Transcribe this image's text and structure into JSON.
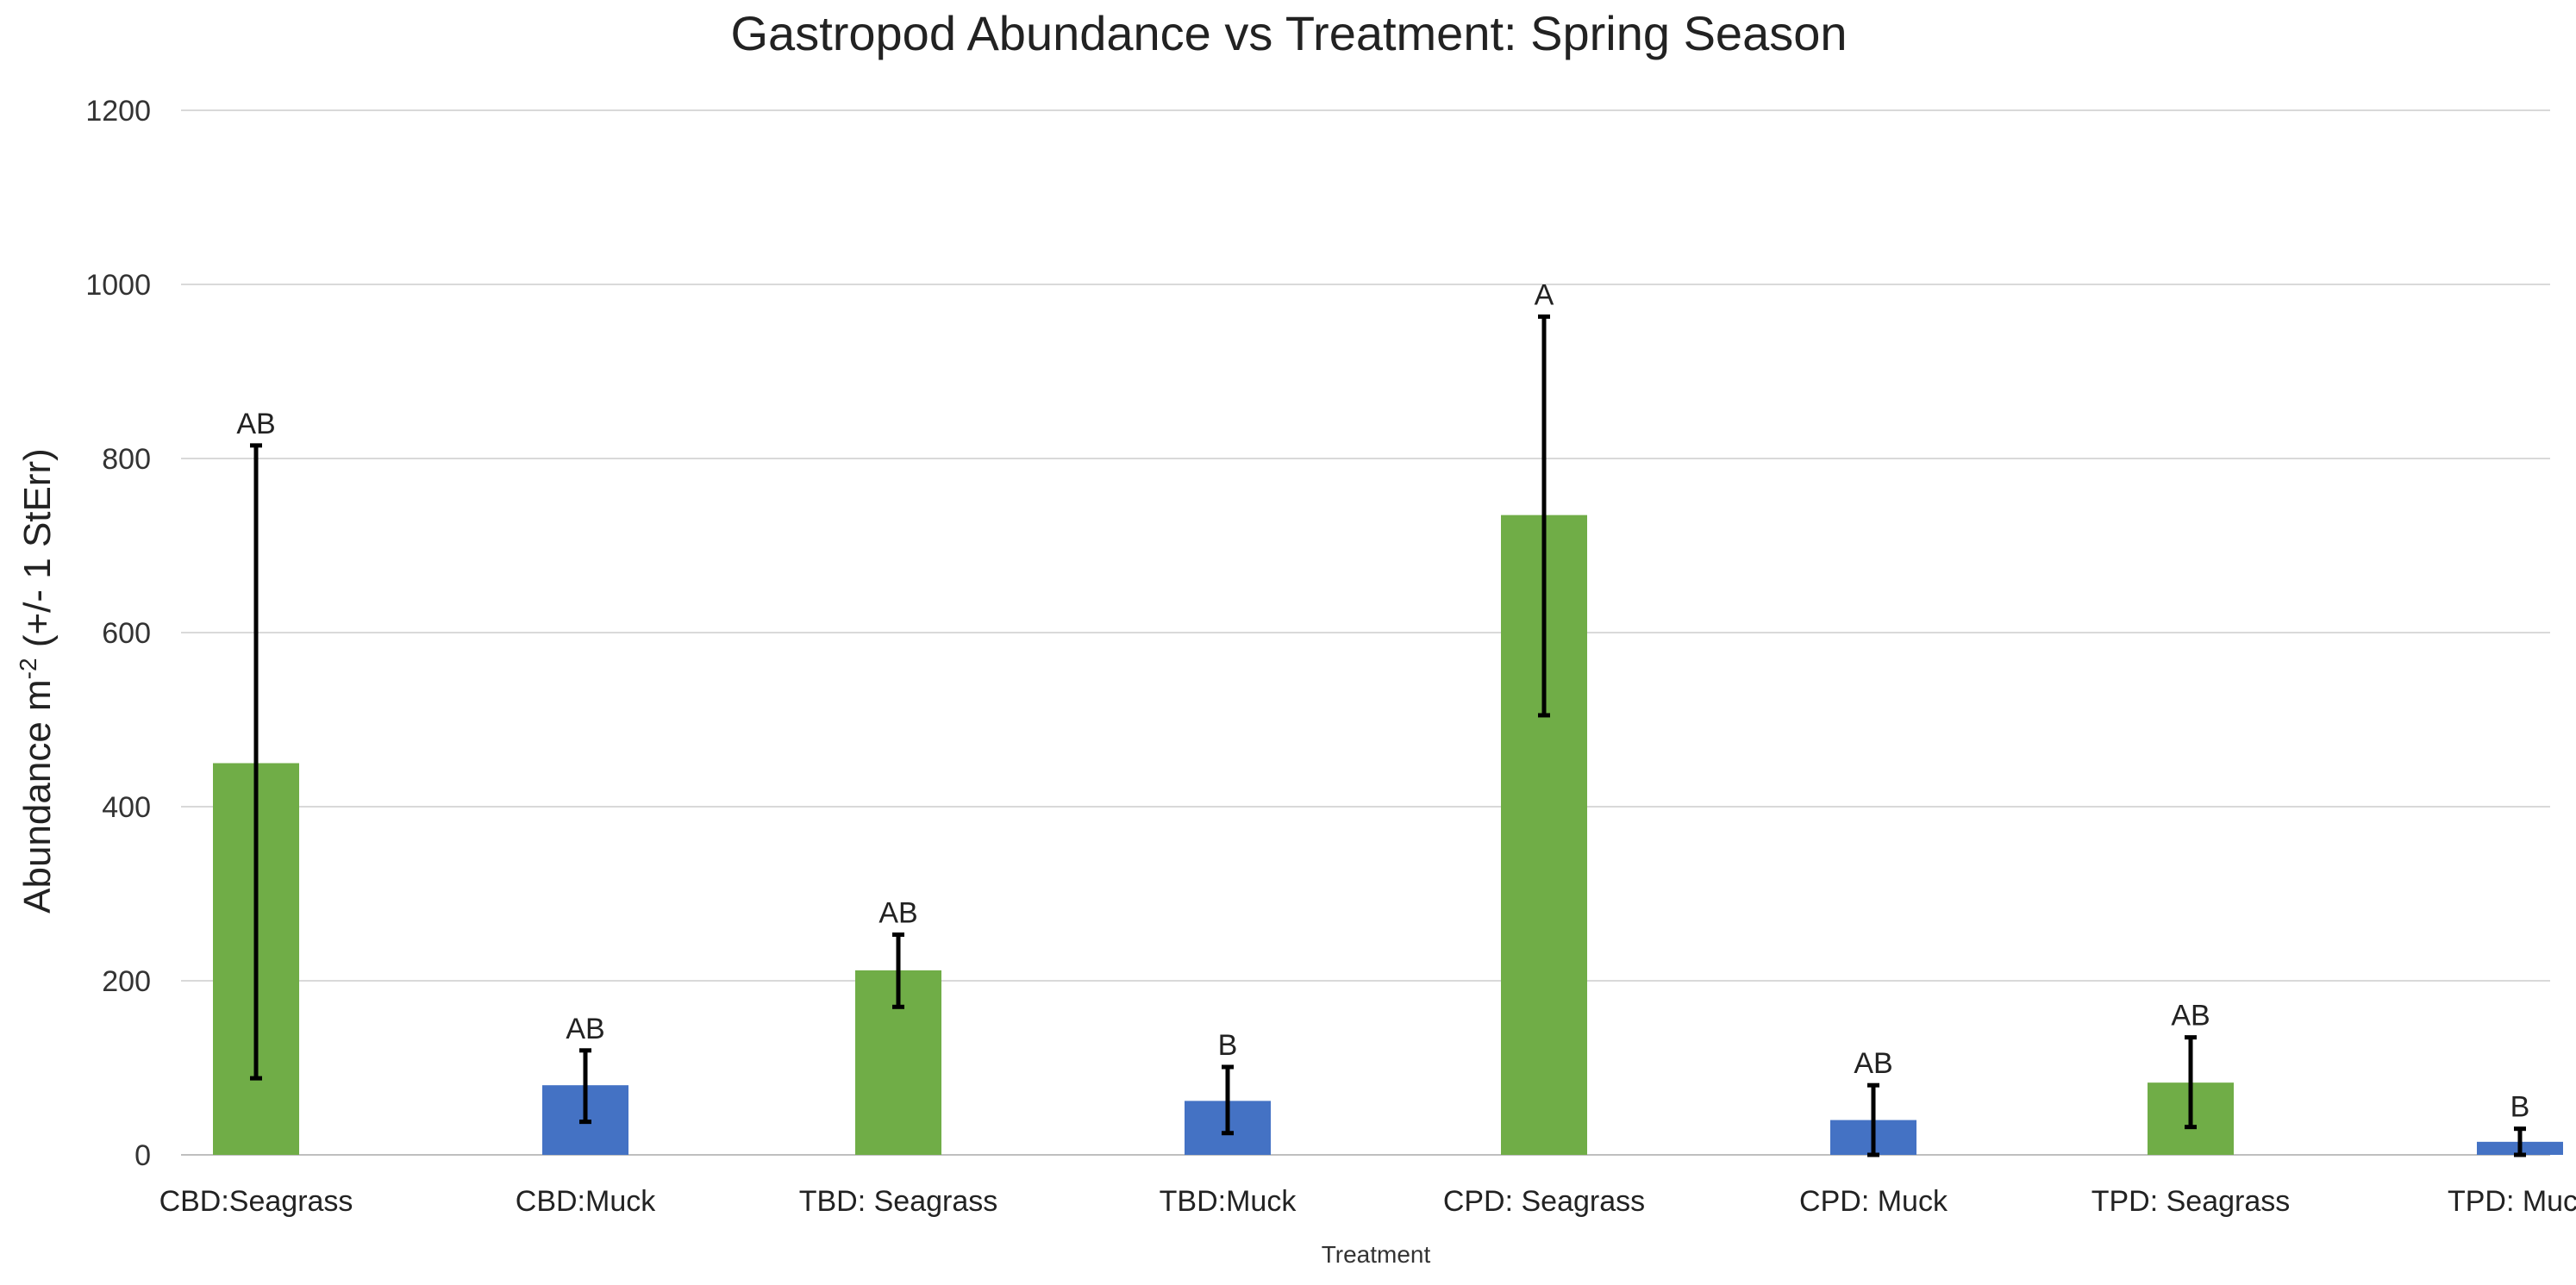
{
  "chart_data": {
    "type": "bar",
    "title": "Gastropod Abundance vs Treatment: Spring Season",
    "xlabel": "Treatment",
    "ylabel_main": "Abundance m",
    "ylabel_sup": "-2",
    "ylabel_rest": " (+/- 1 StErr)",
    "ylim": [
      0,
      1200
    ],
    "yticks": [
      "0",
      "200",
      "400",
      "600",
      "800",
      "1000",
      "1200"
    ],
    "grid": true,
    "colors": {
      "seagrass": "#70ad47",
      "muck": "#4472c4"
    },
    "categories": [
      {
        "label": "CBD:Seagrass",
        "value": 450,
        "err_low": 88,
        "err_high": 815,
        "sig": "AB",
        "habitat": "seagrass"
      },
      {
        "label": "CBD:Muck",
        "value": 80,
        "err_low": 38,
        "err_high": 120,
        "sig": "AB",
        "habitat": "muck"
      },
      {
        "label": "TBD: Seagrass",
        "value": 212,
        "err_low": 170,
        "err_high": 253,
        "sig": "AB",
        "habitat": "seagrass"
      },
      {
        "label": "TBD:Muck",
        "value": 62,
        "err_low": 25,
        "err_high": 101,
        "sig": "B",
        "habitat": "muck"
      },
      {
        "label": "CPD: Seagrass",
        "value": 735,
        "err_low": 505,
        "err_high": 963,
        "sig": "A",
        "habitat": "seagrass"
      },
      {
        "label": "CPD: Muck",
        "value": 40,
        "err_low": 0,
        "err_high": 80,
        "sig": "AB",
        "habitat": "muck"
      },
      {
        "label": "TPD: Seagrass",
        "value": 83,
        "err_low": 32,
        "err_high": 135,
        "sig": "AB",
        "habitat": "seagrass"
      },
      {
        "label": "TPD: Muck",
        "value": 15,
        "err_low": 0,
        "err_high": 30,
        "sig": "B",
        "habitat": "muck"
      }
    ]
  }
}
